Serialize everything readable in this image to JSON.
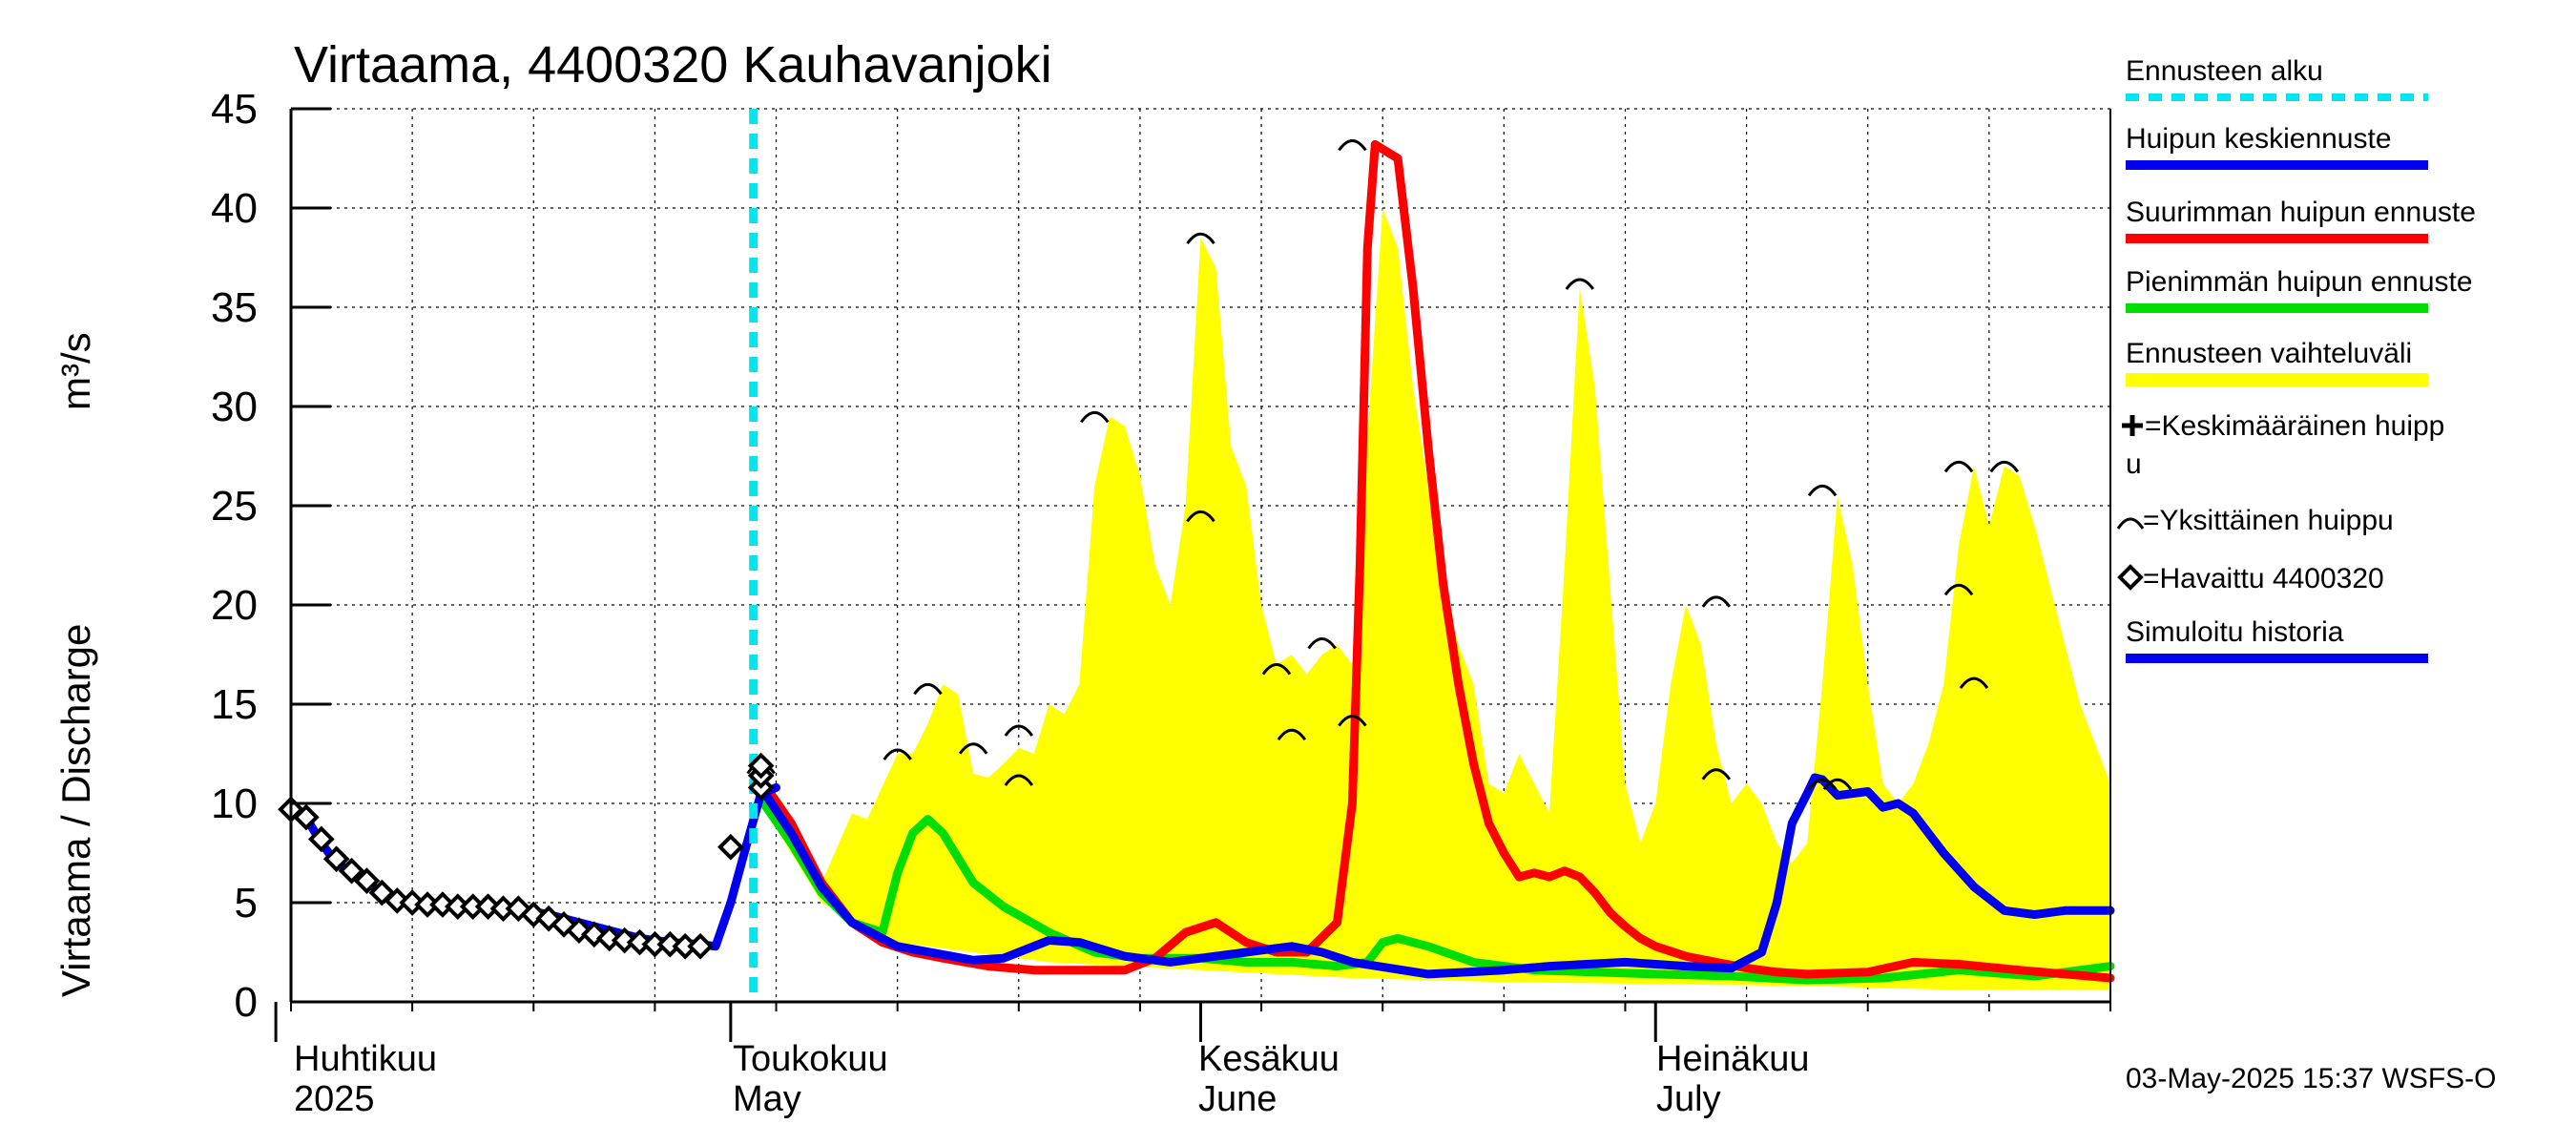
{
  "chart_data": {
    "type": "line",
    "title": "Virtaama, 4400320 Kauhavanjoki",
    "ylabel": "Virtaama / Discharge",
    "yunit": "m³/s",
    "ylim": [
      0,
      45
    ],
    "yticks": [
      0,
      5,
      10,
      15,
      20,
      25,
      30,
      35,
      40,
      45
    ],
    "xlim": [
      0,
      120
    ],
    "x_unit": "days since 2025-03-31",
    "months": [
      {
        "fi": "Huhtikuu",
        "en": "2025",
        "day": 1
      },
      {
        "fi": "Toukokuu",
        "en": "May",
        "day": 31
      },
      {
        "fi": "Kesäkuu",
        "en": "June",
        "day": 62
      },
      {
        "fi": "Heinäkuu",
        "en": "July",
        "day": 92
      }
    ],
    "forecast_start_day": 30.5,
    "band_upper": [
      [
        31,
        10.5
      ],
      [
        33,
        9
      ],
      [
        35,
        6
      ],
      [
        37,
        9.5
      ],
      [
        38,
        9.2
      ],
      [
        40,
        12.5
      ],
      [
        41,
        12.5
      ],
      [
        42,
        14
      ],
      [
        43,
        16
      ],
      [
        44,
        15.5
      ],
      [
        45,
        11.5
      ],
      [
        46,
        11.3
      ],
      [
        47,
        12
      ],
      [
        48,
        12.8
      ],
      [
        49,
        12.5
      ],
      [
        50,
        15
      ],
      [
        51,
        14.5
      ],
      [
        52,
        16
      ],
      [
        53,
        26
      ],
      [
        54,
        29.5
      ],
      [
        55,
        29
      ],
      [
        56,
        26.5
      ],
      [
        57,
        22
      ],
      [
        58,
        20
      ],
      [
        59,
        25
      ],
      [
        60,
        38.5
      ],
      [
        61,
        37
      ],
      [
        62,
        28
      ],
      [
        63,
        26
      ],
      [
        64,
        20
      ],
      [
        65,
        17
      ],
      [
        66,
        17.5
      ],
      [
        67,
        16.5
      ],
      [
        68,
        17.5
      ],
      [
        69,
        18
      ],
      [
        70,
        17
      ],
      [
        72,
        40
      ],
      [
        73,
        38
      ],
      [
        74,
        31
      ],
      [
        75,
        26
      ],
      [
        76,
        21
      ],
      [
        77,
        18
      ],
      [
        78,
        16
      ],
      [
        79,
        11
      ],
      [
        80,
        10.5
      ],
      [
        81,
        12.5
      ],
      [
        82,
        11
      ],
      [
        83,
        9.5
      ],
      [
        84,
        22
      ],
      [
        85,
        36
      ],
      [
        86,
        31
      ],
      [
        87,
        21
      ],
      [
        88,
        11
      ],
      [
        89,
        8
      ],
      [
        90,
        10
      ],
      [
        91,
        16
      ],
      [
        92,
        20
      ],
      [
        93,
        18
      ],
      [
        94,
        13
      ],
      [
        95,
        10
      ],
      [
        96,
        11
      ],
      [
        97,
        10
      ],
      [
        98,
        8
      ],
      [
        99,
        7
      ],
      [
        100,
        8
      ],
      [
        101,
        16
      ],
      [
        102,
        25.5
      ],
      [
        103,
        22
      ],
      [
        104,
        16
      ],
      [
        105,
        11
      ],
      [
        106,
        10
      ],
      [
        107,
        11
      ],
      [
        108,
        13
      ],
      [
        109,
        16
      ],
      [
        110,
        23
      ],
      [
        111,
        27
      ],
      [
        112,
        24
      ],
      [
        113,
        27
      ],
      [
        114,
        26.5
      ],
      [
        115,
        24
      ],
      [
        116,
        21
      ],
      [
        117,
        18
      ],
      [
        118,
        15
      ],
      [
        119,
        13
      ],
      [
        120,
        11
      ]
    ],
    "band_lower": [
      [
        31,
        10
      ],
      [
        35,
        5
      ],
      [
        40,
        3
      ],
      [
        50,
        2
      ],
      [
        60,
        1.6
      ],
      [
        70,
        1.2
      ],
      [
        80,
        1
      ],
      [
        90,
        0.9
      ],
      [
        100,
        0.8
      ],
      [
        110,
        0.6
      ],
      [
        120,
        0.6
      ]
    ],
    "series": [
      {
        "name": "Suurimman huipun ennuste",
        "color": "#ff0000",
        "points": [
          [
            31,
            11.2
          ],
          [
            33,
            9
          ],
          [
            35,
            6
          ],
          [
            37,
            4
          ],
          [
            39,
            3
          ],
          [
            41,
            2.5
          ],
          [
            43,
            2.2
          ],
          [
            46,
            1.8
          ],
          [
            49,
            1.6
          ],
          [
            52,
            1.6
          ],
          [
            55,
            1.6
          ],
          [
            57,
            2.2
          ],
          [
            59,
            3.5
          ],
          [
            61,
            4
          ],
          [
            63,
            3
          ],
          [
            65,
            2.5
          ],
          [
            67,
            2.5
          ],
          [
            69,
            4
          ],
          [
            70,
            10
          ],
          [
            70.5,
            22
          ],
          [
            71,
            38
          ],
          [
            71.5,
            43.2
          ],
          [
            73,
            42.5
          ],
          [
            74,
            36
          ],
          [
            75,
            28
          ],
          [
            76,
            21
          ],
          [
            77,
            16
          ],
          [
            78,
            12
          ],
          [
            79,
            9
          ],
          [
            80,
            7.5
          ],
          [
            81,
            6.3
          ],
          [
            82,
            6.5
          ],
          [
            83,
            6.3
          ],
          [
            84,
            6.6
          ],
          [
            85,
            6.3
          ],
          [
            86,
            5.5
          ],
          [
            87,
            4.5
          ],
          [
            88,
            3.8
          ],
          [
            89,
            3.2
          ],
          [
            90,
            2.8
          ],
          [
            92,
            2.3
          ],
          [
            94,
            2
          ],
          [
            96,
            1.7
          ],
          [
            98,
            1.5
          ],
          [
            100,
            1.4
          ],
          [
            104,
            1.5
          ],
          [
            107,
            2
          ],
          [
            110,
            1.9
          ],
          [
            114,
            1.6
          ],
          [
            120,
            1.2
          ]
        ]
      },
      {
        "name": "Pienimmän huipun ennuste",
        "color": "#00dd00",
        "points": [
          [
            31,
            10.2
          ],
          [
            33,
            8
          ],
          [
            35,
            5.5
          ],
          [
            37,
            4
          ],
          [
            39,
            3.5
          ],
          [
            40,
            6.5
          ],
          [
            41,
            8.5
          ],
          [
            42,
            9.2
          ],
          [
            43,
            8.5
          ],
          [
            45,
            6
          ],
          [
            47,
            4.8
          ],
          [
            50,
            3.5
          ],
          [
            53,
            2.5
          ],
          [
            56,
            2.2
          ],
          [
            60,
            2.2
          ],
          [
            63,
            2
          ],
          [
            66,
            2
          ],
          [
            69,
            1.8
          ],
          [
            71,
            2
          ],
          [
            72,
            3
          ],
          [
            73,
            3.2
          ],
          [
            75,
            2.8
          ],
          [
            78,
            2
          ],
          [
            82,
            1.6
          ],
          [
            90,
            1.4
          ],
          [
            95,
            1.3
          ],
          [
            100,
            1.1
          ],
          [
            105,
            1.2
          ],
          [
            110,
            1.6
          ],
          [
            115,
            1.3
          ],
          [
            120,
            1.8
          ]
        ]
      },
      {
        "name": "Huipun keskiennuste",
        "color": "#0000ee",
        "points": [
          [
            31,
            10.8
          ],
          [
            33,
            8.5
          ],
          [
            35,
            5.8
          ],
          [
            37,
            4
          ],
          [
            40,
            2.8
          ],
          [
            45,
            2.1
          ],
          [
            47,
            2.2
          ],
          [
            50,
            3.1
          ],
          [
            52,
            3
          ],
          [
            55,
            2.3
          ],
          [
            58,
            2
          ],
          [
            60,
            2.2
          ],
          [
            63,
            2.5
          ],
          [
            65,
            2.7
          ],
          [
            66,
            2.8
          ],
          [
            68,
            2.5
          ],
          [
            70,
            2
          ],
          [
            75,
            1.4
          ],
          [
            80,
            1.6
          ],
          [
            83,
            1.8
          ],
          [
            88,
            2
          ],
          [
            92,
            1.8
          ],
          [
            95,
            1.7
          ],
          [
            97,
            2.5
          ],
          [
            98,
            5
          ],
          [
            99,
            9
          ],
          [
            100,
            10.5
          ],
          [
            100.5,
            11.3
          ],
          [
            101,
            11.2
          ],
          [
            102,
            10.4
          ],
          [
            104,
            10.6
          ],
          [
            105,
            9.8
          ],
          [
            106,
            10
          ],
          [
            107,
            9.5
          ],
          [
            109,
            7.5
          ],
          [
            111,
            5.8
          ],
          [
            113,
            4.6
          ],
          [
            115,
            4.4
          ],
          [
            117,
            4.6
          ],
          [
            120,
            4.6
          ]
        ]
      },
      {
        "name": "Simuloitu historia",
        "color": "#0000ee",
        "points": [
          [
            0,
            9.7
          ],
          [
            1,
            9.3
          ],
          [
            2,
            8
          ],
          [
            3,
            7
          ],
          [
            4,
            6.5
          ],
          [
            5,
            6
          ],
          [
            6,
            5.5
          ],
          [
            7,
            5.2
          ],
          [
            8,
            5
          ],
          [
            10,
            4.9
          ],
          [
            12,
            4.8
          ],
          [
            14,
            4.8
          ],
          [
            15,
            4.7
          ],
          [
            17,
            4.4
          ],
          [
            19,
            4
          ],
          [
            21,
            3.6
          ],
          [
            23,
            3.2
          ],
          [
            25,
            3
          ],
          [
            27,
            2.9
          ],
          [
            28,
            2.8
          ],
          [
            29,
            5
          ],
          [
            30,
            7.8
          ],
          [
            31,
            10.5
          ],
          [
            32,
            10.8
          ]
        ]
      }
    ],
    "observed_name": "Havaittu 4400320",
    "observed": [
      [
        0,
        9.7
      ],
      [
        1,
        9.3
      ],
      [
        2,
        8.2
      ],
      [
        3,
        7.2
      ],
      [
        4,
        6.6
      ],
      [
        5,
        6.1
      ],
      [
        6,
        5.5
      ],
      [
        7,
        5.1
      ],
      [
        8,
        5
      ],
      [
        9,
        4.9
      ],
      [
        10,
        4.9
      ],
      [
        11,
        4.8
      ],
      [
        12,
        4.8
      ],
      [
        13,
        4.8
      ],
      [
        14,
        4.7
      ],
      [
        15,
        4.7
      ],
      [
        16,
        4.4
      ],
      [
        17,
        4.2
      ],
      [
        18,
        3.9
      ],
      [
        19,
        3.6
      ],
      [
        20,
        3.4
      ],
      [
        21,
        3.2
      ],
      [
        22,
        3.1
      ],
      [
        23,
        3
      ],
      [
        24,
        2.9
      ],
      [
        25,
        2.9
      ],
      [
        26,
        2.8
      ],
      [
        27,
        2.8
      ],
      [
        29,
        7.8
      ],
      [
        31,
        10.8
      ],
      [
        31,
        11.4
      ],
      [
        31,
        11.9
      ]
    ],
    "single_peaks_name": "Yksittäinen huippu",
    "single_peaks": [
      [
        31,
        11.8
      ],
      [
        40,
        12.5
      ],
      [
        42,
        15.8
      ],
      [
        45,
        12.8
      ],
      [
        48,
        13.7
      ],
      [
        48,
        11.2
      ],
      [
        53,
        29.5
      ],
      [
        60,
        38.5
      ],
      [
        60,
        24.5
      ],
      [
        65,
        16.8
      ],
      [
        66,
        13.5
      ],
      [
        68,
        18.1
      ],
      [
        70,
        43.2
      ],
      [
        70,
        14.2
      ],
      [
        85,
        36.2
      ],
      [
        94,
        20.2
      ],
      [
        94,
        11.5
      ],
      [
        101,
        25.8
      ],
      [
        101,
        11
      ],
      [
        102,
        11
      ],
      [
        110,
        27
      ],
      [
        110,
        20.8
      ],
      [
        113,
        27
      ],
      [
        111,
        16.1
      ]
    ],
    "mean_peak_name": "Keskimääräinen huippu"
  },
  "legend": {
    "forecast_start": "Ennusteen alku",
    "mean_forecast": "Huipun keskiennuste",
    "max_forecast": "Suurimman huipun ennuste",
    "min_forecast": "Pienimmän huipun ennuste",
    "range": "Ennusteen vaihteluväli",
    "mean_peak_line1": "=Keskimääräinen huipp",
    "mean_peak_line2": "u",
    "single_peak": "=Yksittäinen huippu",
    "observed": "=Havaittu 4400320",
    "simulated": "Simuloitu historia"
  },
  "colors": {
    "cyan": "#00e5ee",
    "blue": "#0000ee",
    "red": "#ff0000",
    "green": "#00dd00",
    "yellow": "#ffff00"
  },
  "timestamp": "03-May-2025 15:37 WSFS-O"
}
